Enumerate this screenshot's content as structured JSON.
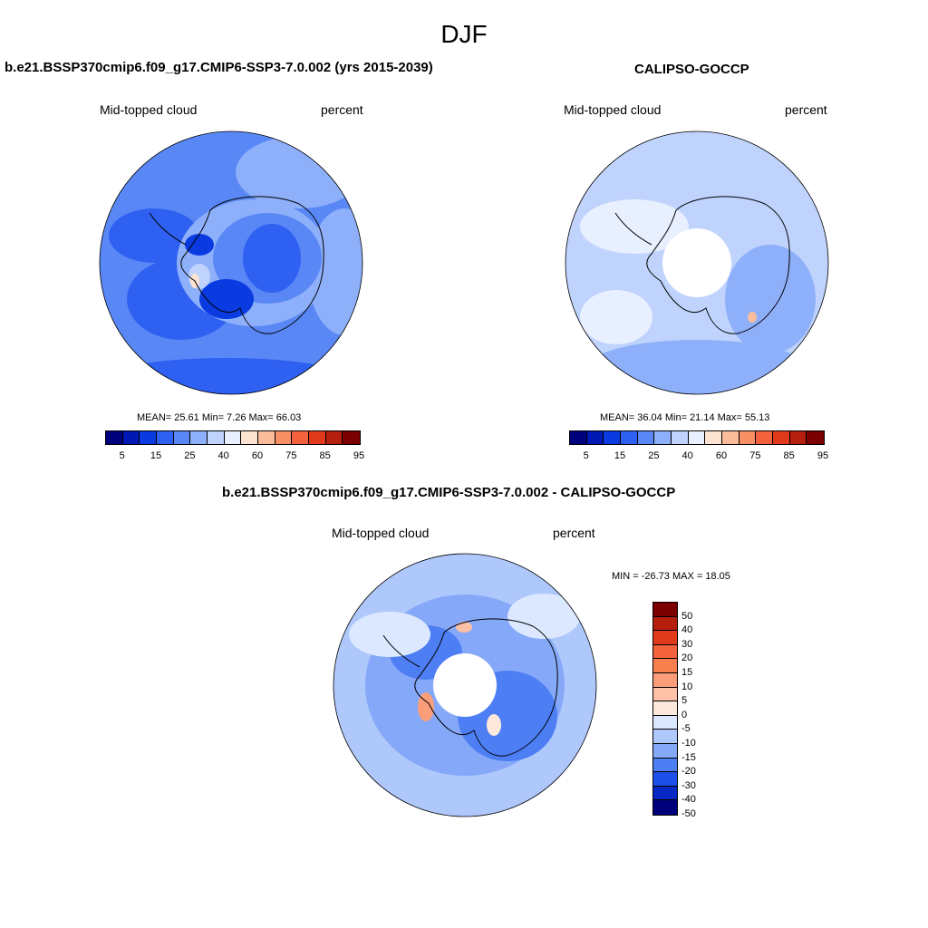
{
  "figure": {
    "title": "DJF"
  },
  "panels": [
    {
      "title": "b.e21.BSSP370cmip6.f09_g17.CMIP6-SSP3-7.0.002 (yrs 2015-2039)",
      "variable": "Mid-topped cloud",
      "units": "percent",
      "stats": "MEAN=  25.61  Min=   7.26  Max=  66.03",
      "colorbar_ticks": [
        "5",
        "15",
        "25",
        "40",
        "60",
        "75",
        "85",
        "95"
      ]
    },
    {
      "title": "CALIPSO-GOCCP",
      "variable": "Mid-topped cloud",
      "units": "percent",
      "stats": "MEAN=  36.04  Min=  21.14  Max=  55.13",
      "colorbar_ticks": [
        "5",
        "15",
        "25",
        "40",
        "60",
        "75",
        "85",
        "95"
      ]
    },
    {
      "title": "b.e21.BSSP370cmip6.f09_g17.CMIP6-SSP3-7.0.002 - CALIPSO-GOCCP",
      "variable": "Mid-topped cloud",
      "units": "percent",
      "stats": "MIN = -26.73 MAX =  18.05",
      "colorbar_ticks": [
        "50",
        "40",
        "30",
        "20",
        "15",
        "10",
        "5",
        "0",
        "-5",
        "-10",
        "-15",
        "-20",
        "-30",
        "-40",
        "-50"
      ]
    }
  ],
  "colors": {
    "abs_scale": [
      "#00007d",
      "#0018b4",
      "#0a3be0",
      "#2e60f2",
      "#5a87f6",
      "#8eb0fa",
      "#bfd3fd",
      "#e8efff",
      "#fde3d1",
      "#fbbc9b",
      "#f89066",
      "#f2623c",
      "#e13a1b",
      "#b51f0e",
      "#7d0000"
    ],
    "diff_scale": [
      "#7d0000",
      "#b51f0e",
      "#e13a1b",
      "#f2623c",
      "#f8804f",
      "#fa9e79",
      "#fcc1a6",
      "#fde8dc",
      "#dce8ff",
      "#afc8fc",
      "#85a8f8",
      "#4d7ef4",
      "#1e4fe8",
      "#0728c4",
      "#00007d"
    ]
  }
}
